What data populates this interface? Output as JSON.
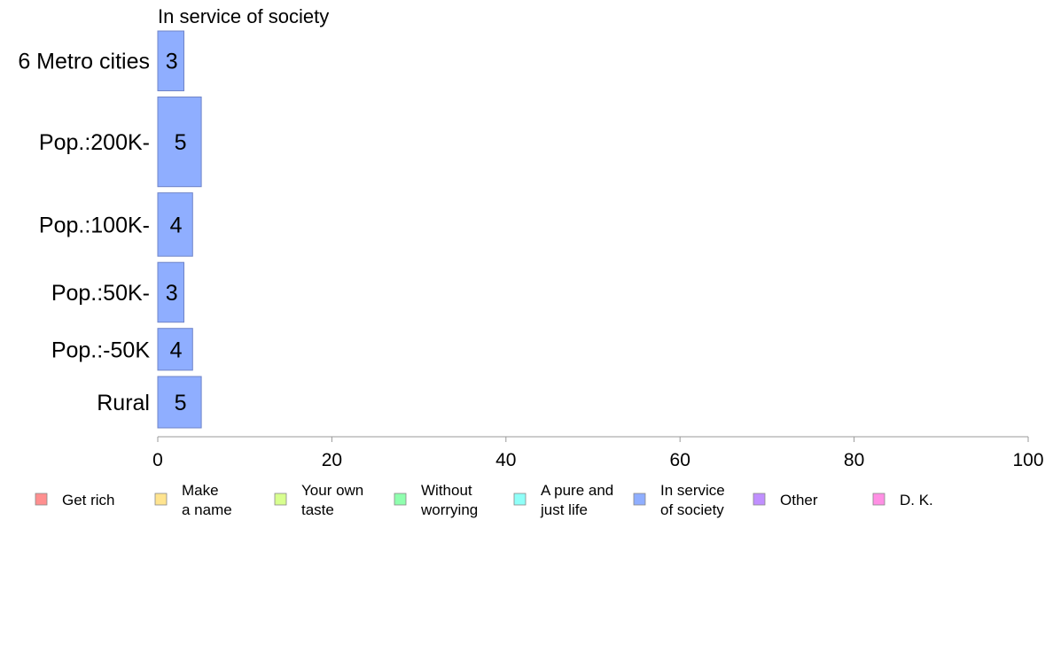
{
  "chart_data": {
    "type": "bar",
    "orientation": "horizontal",
    "title": "In service of society",
    "xlabel": "",
    "ylabel": "",
    "xlim": [
      0,
      100
    ],
    "x_ticks": [
      "0",
      "20",
      "40",
      "60",
      "80",
      "100"
    ],
    "grid": false,
    "categories": [
      "6 Metro cities",
      "Pop.:200K-",
      "Pop.:100K-",
      "Pop.:50K-",
      "Pop.:-50K",
      "Rural"
    ],
    "series": [
      {
        "name": "In service of society",
        "values": [
          3,
          5,
          4,
          3,
          4,
          5
        ]
      }
    ],
    "bar_labels": [
      "3",
      "5",
      "4",
      "3",
      "4",
      "5"
    ],
    "relative_band_height": [
      1,
      1.5,
      1.06,
      1,
      0.7,
      0.86
    ],
    "bar_color": "#8faeff",
    "bar_stroke": "#6f84c8",
    "legend_position": "bottom",
    "legend": [
      {
        "lines": [
          "Get rich"
        ],
        "color": "#ff8f8f"
      },
      {
        "lines": [
          "Make",
          "a name"
        ],
        "color": "#ffe48f"
      },
      {
        "lines": [
          "Your own",
          "taste"
        ],
        "color": "#d8ff8f"
      },
      {
        "lines": [
          "Without",
          "worrying"
        ],
        "color": "#8fffae"
      },
      {
        "lines": [
          "A pure and",
          "just life"
        ],
        "color": "#8ffff8"
      },
      {
        "lines": [
          "In service",
          "of society"
        ],
        "color": "#8faeff"
      },
      {
        "lines": [
          "Other"
        ],
        "color": "#c08fff"
      },
      {
        "lines": [
          "D. K."
        ],
        "color": "#ff8fe4"
      }
    ]
  }
}
